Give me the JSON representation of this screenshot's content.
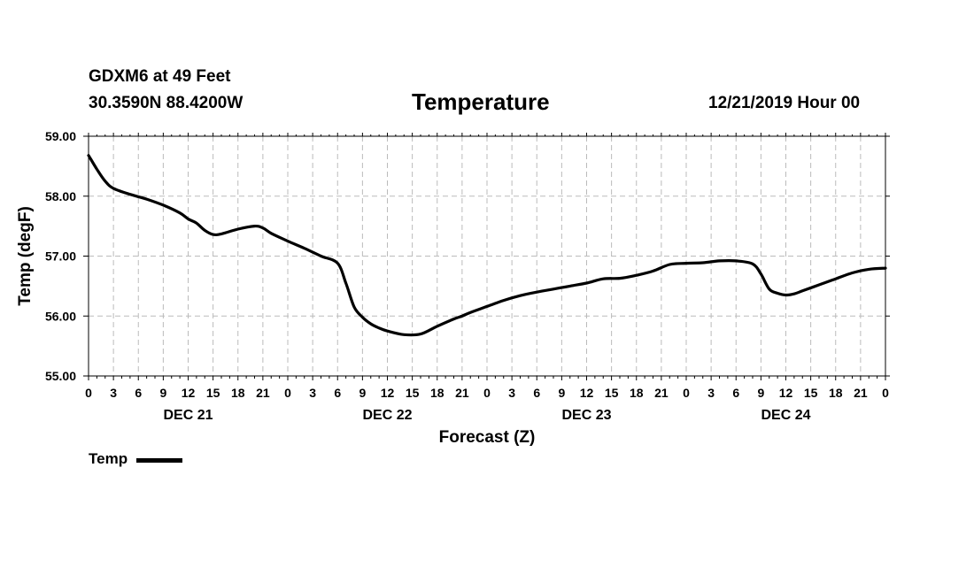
{
  "header": {
    "station": "GDXM6 at 49 Feet",
    "coords": "30.3590N 88.4200W",
    "title": "Temperature",
    "run_time": "12/21/2019 Hour 00"
  },
  "legend": {
    "label": "Temp",
    "color": "#000000"
  },
  "chart_data": {
    "type": "line",
    "title": "Temperature",
    "xlabel": "Forecast (Z)",
    "ylabel": "Temp (degF)",
    "ylim": [
      55.0,
      59.0
    ],
    "yticks": [
      "55.00",
      "56.00",
      "57.00",
      "58.00",
      "59.00"
    ],
    "xlim": [
      0,
      96
    ],
    "xtick_labels": [
      "0",
      "3",
      "6",
      "9",
      "12",
      "15",
      "18",
      "21",
      "0",
      "3",
      "6",
      "9",
      "12",
      "15",
      "18",
      "21",
      "0",
      "3",
      "6",
      "9",
      "12",
      "15",
      "18",
      "21",
      "0",
      "3",
      "6",
      "9",
      "12",
      "15",
      "18",
      "21",
      "0"
    ],
    "day_labels": [
      {
        "hour": 12,
        "label": "DEC 21"
      },
      {
        "hour": 36,
        "label": "DEC 22"
      },
      {
        "hour": 60,
        "label": "DEC 23"
      },
      {
        "hour": 84,
        "label": "DEC 24"
      }
    ],
    "grid": true,
    "series": [
      {
        "name": "Temp",
        "color": "#000000",
        "x": [
          0,
          1,
          2,
          3,
          5,
          7,
          9,
          11,
          12,
          13,
          14,
          15,
          16,
          18,
          20,
          21,
          22,
          24,
          26,
          28,
          30,
          31,
          32,
          33,
          34,
          35,
          36,
          38,
          40,
          42,
          44,
          45,
          46,
          48,
          50,
          52,
          54,
          56,
          58,
          60,
          62,
          64,
          66,
          68,
          70,
          72,
          74,
          76,
          78,
          80,
          81,
          82,
          83,
          84,
          85,
          86,
          88,
          90,
          92,
          94,
          96
        ],
        "y": [
          58.68,
          58.45,
          58.25,
          58.13,
          58.03,
          57.95,
          57.85,
          57.72,
          57.62,
          57.55,
          57.43,
          57.36,
          57.37,
          57.45,
          57.5,
          57.47,
          57.38,
          57.25,
          57.13,
          57.0,
          56.88,
          56.55,
          56.15,
          55.98,
          55.87,
          55.8,
          55.75,
          55.69,
          55.7,
          55.83,
          55.95,
          56.0,
          56.06,
          56.16,
          56.26,
          56.34,
          56.4,
          56.45,
          56.5,
          56.55,
          56.62,
          56.63,
          56.68,
          56.75,
          56.86,
          56.88,
          56.89,
          56.92,
          56.92,
          56.87,
          56.7,
          56.45,
          56.38,
          56.35,
          56.37,
          56.42,
          56.52,
          56.62,
          56.72,
          56.78,
          56.8
        ]
      }
    ]
  }
}
